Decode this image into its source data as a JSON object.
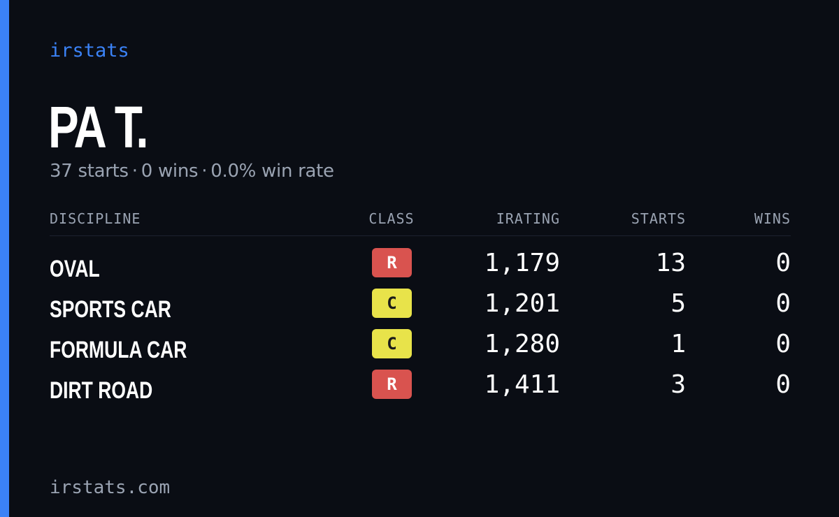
{
  "brand": "irstats",
  "driver": {
    "name": "PA T.",
    "starts_text": "37 starts",
    "wins_text": "0 wins",
    "win_rate_text": "0.0% win rate",
    "separator": "·"
  },
  "table": {
    "headers": {
      "discipline": "DISCIPLINE",
      "class": "CLASS",
      "irating": "IRATING",
      "starts": "STARTS",
      "wins": "WINS"
    },
    "rows": [
      {
        "discipline": "OVAL",
        "class": "R",
        "class_color": "#d9534f",
        "class_text_color": "#ffffff",
        "irating": "1,179",
        "starts": "13",
        "wins": "0"
      },
      {
        "discipline": "SPORTS CAR",
        "class": "C",
        "class_color": "#e8e34a",
        "class_text_color": "#1a1a1a",
        "irating": "1,201",
        "starts": "5",
        "wins": "0"
      },
      {
        "discipline": "FORMULA CAR",
        "class": "C",
        "class_color": "#e8e34a",
        "class_text_color": "#1a1a1a",
        "irating": "1,280",
        "starts": "1",
        "wins": "0"
      },
      {
        "discipline": "DIRT ROAD",
        "class": "R",
        "class_color": "#d9534f",
        "class_text_color": "#ffffff",
        "irating": "1,411",
        "starts": "3",
        "wins": "0"
      }
    ]
  },
  "footer": "irstats.com",
  "colors": {
    "background": "#0a0d14",
    "accent": "#3b82f6",
    "muted_text": "#9aa3b2"
  }
}
